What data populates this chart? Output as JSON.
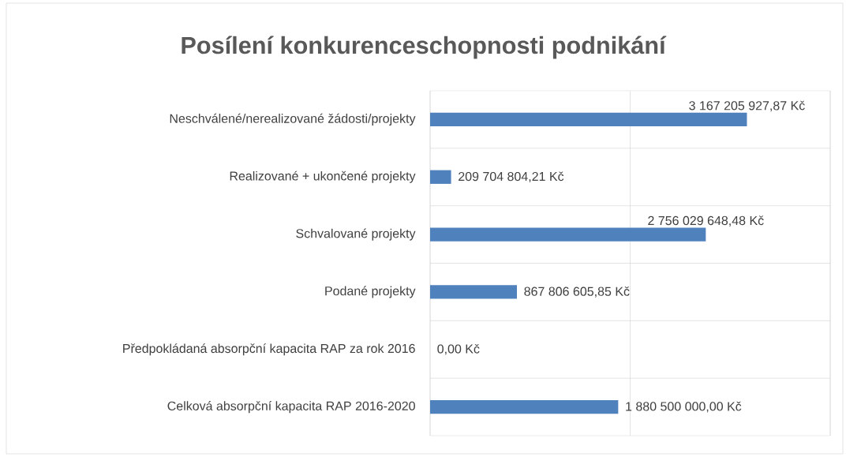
{
  "chart_data": {
    "type": "bar",
    "orientation": "horizontal",
    "title": "Posílení konkurenceschopnosti podnikání",
    "categories": [
      "Neschválené/nerealizované žádosti/projekty",
      "Realizované + ukončené projekty",
      "Schvalované projekty",
      "Podané projekty",
      "Předpokládaná absorpční kapacita RAP za rok 2016",
      "Celková absorpční kapacita RAP 2016-2020"
    ],
    "values": [
      3167205927.87,
      209704804.21,
      2756029648.48,
      867806605.85,
      0,
      1880500000
    ],
    "value_labels": [
      "3 167 205 927,87 Kč",
      "209 704 804,21 Kč",
      "2 756 029 648,48 Kč",
      "867 806 605,85 Kč",
      "0,00 Kč",
      "1 880 500 000,00 Kč"
    ],
    "color": "#4f81bd",
    "xlim": [
      0,
      4000000000
    ],
    "xticks": [
      {
        "value": 0,
        "label": null
      },
      {
        "value": 2000000000,
        "label": null
      },
      {
        "value": 4000000000,
        "label": null
      }
    ],
    "tick_labels": "y",
    "grid": true
  }
}
